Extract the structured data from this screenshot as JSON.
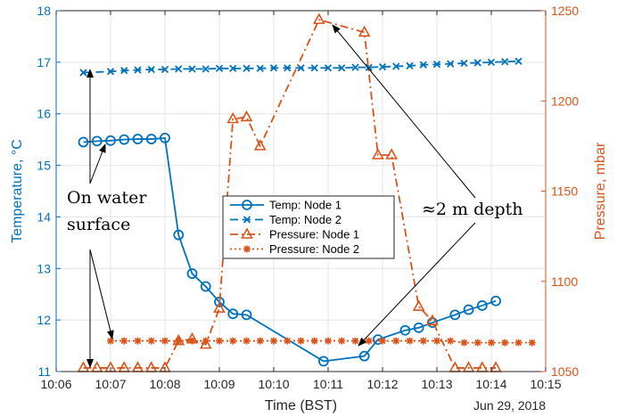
{
  "chart_data": {
    "type": "line",
    "title": "",
    "xlabel": "Time (BST)",
    "x_date_label": "Jun 29, 2018",
    "xlim": [
      "10:06",
      "10:15"
    ],
    "x_ticks": [
      "10:06",
      "10:07",
      "10:08",
      "10:09",
      "10:10",
      "10:11",
      "10:12",
      "10:13",
      "10:14",
      "10:15"
    ],
    "grid": true,
    "y_left": {
      "label": "Temperature, °C",
      "lim": [
        11,
        18
      ],
      "ticks": [
        "11",
        "12",
        "13",
        "14",
        "15",
        "16",
        "17",
        "18"
      ],
      "color": "#0072BD"
    },
    "y_right": {
      "label": "Pressure, mbar",
      "lim": [
        1050,
        1250
      ],
      "ticks": [
        "1050",
        "1100",
        "1150",
        "1200",
        "1250"
      ],
      "color": "#D95319"
    },
    "legend_position": "center",
    "series": [
      {
        "name": "Temp: Node 1",
        "axis": "left",
        "color": "#0072BD",
        "line": "solid",
        "marker": "circle",
        "x": [
          "10:06:30",
          "10:06:45",
          "10:07:00",
          "10:07:15",
          "10:07:30",
          "10:07:45",
          "10:08:00",
          "10:08:15",
          "10:08:30",
          "10:08:45",
          "10:09:00",
          "10:09:15",
          "10:09:30",
          "10:10:55",
          "10:11:40",
          "10:11:55",
          "10:12:25",
          "10:12:40",
          "10:12:55",
          "10:13:20",
          "10:13:35",
          "10:13:50",
          "10:14:05"
        ],
        "values": [
          15.45,
          15.47,
          15.48,
          15.5,
          15.51,
          15.51,
          15.53,
          13.65,
          12.9,
          12.65,
          12.35,
          12.12,
          12.1,
          11.2,
          11.3,
          11.62,
          11.8,
          11.85,
          11.95,
          12.1,
          12.2,
          12.28,
          12.37
        ]
      },
      {
        "name": "Temp: Node 2",
        "axis": "left",
        "color": "#0072BD",
        "line": "dashed",
        "marker": "x",
        "x": [
          "10:06:30",
          "10:07:00",
          "10:07:15",
          "10:07:30",
          "10:07:45",
          "10:08:00",
          "10:08:15",
          "10:08:30",
          "10:08:45",
          "10:09:00",
          "10:09:15",
          "10:09:30",
          "10:09:45",
          "10:10:00",
          "10:10:15",
          "10:10:30",
          "10:10:45",
          "10:11:00",
          "10:11:15",
          "10:11:30",
          "10:11:45",
          "10:12:00",
          "10:12:15",
          "10:12:30",
          "10:12:45",
          "10:13:00",
          "10:13:15",
          "10:13:30",
          "10:13:45",
          "10:14:00",
          "10:14:15",
          "10:14:30"
        ],
        "values": [
          16.8,
          16.82,
          16.84,
          16.85,
          16.86,
          16.86,
          16.87,
          16.87,
          16.87,
          16.88,
          16.88,
          16.88,
          16.88,
          16.89,
          16.89,
          16.89,
          16.89,
          16.89,
          16.89,
          16.9,
          16.9,
          16.91,
          16.92,
          16.93,
          16.95,
          16.96,
          16.97,
          16.98,
          16.99,
          17.0,
          17.01,
          17.02
        ]
      },
      {
        "name": "Pressure: Node 1",
        "axis": "right",
        "color": "#D95319",
        "line": "dashdot",
        "marker": "triangle",
        "x": [
          "10:06:30",
          "10:06:45",
          "10:07:00",
          "10:07:15",
          "10:07:30",
          "10:07:45",
          "10:08:00",
          "10:08:15",
          "10:08:30",
          "10:08:45",
          "10:09:00",
          "10:09:15",
          "10:09:30",
          "10:09:45",
          "10:10:50",
          "10:11:40",
          "10:11:55",
          "10:12:10",
          "10:12:40",
          "10:12:55",
          "10:13:20",
          "10:13:35",
          "10:13:50",
          "10:14:05"
        ],
        "values": [
          1052,
          1052,
          1052,
          1052,
          1052,
          1052,
          1052,
          1067,
          1068,
          1065,
          1085,
          1190,
          1191,
          1175,
          1245,
          1238,
          1170,
          1170,
          1086,
          1078,
          1052,
          1052,
          1052,
          1052
        ]
      },
      {
        "name": "Pressure: Node 2",
        "axis": "right",
        "color": "#D95319",
        "line": "dotted",
        "marker": "star",
        "x": [
          "10:07:00",
          "10:07:15",
          "10:07:30",
          "10:07:45",
          "10:08:00",
          "10:08:15",
          "10:08:30",
          "10:08:45",
          "10:09:00",
          "10:09:15",
          "10:09:30",
          "10:09:45",
          "10:10:00",
          "10:10:15",
          "10:10:30",
          "10:10:45",
          "10:11:00",
          "10:11:15",
          "10:11:30",
          "10:11:45",
          "10:12:00",
          "10:12:15",
          "10:12:30",
          "10:12:45",
          "10:13:00",
          "10:13:15",
          "10:13:30",
          "10:13:45",
          "10:14:00",
          "10:14:15",
          "10:14:30",
          "10:14:45"
        ],
        "values": [
          1067,
          1067,
          1067,
          1067,
          1067,
          1067,
          1067,
          1067,
          1067,
          1067,
          1067,
          1067,
          1067,
          1067,
          1067,
          1067,
          1067,
          1067,
          1067,
          1067,
          1067,
          1067,
          1067,
          1067,
          1067,
          1067,
          1066,
          1066,
          1066,
          1066,
          1066,
          1066
        ]
      }
    ],
    "annotations": [
      {
        "lines": [
          "On water",
          "surface"
        ]
      },
      {
        "lines": [
          "≈2 m depth"
        ]
      }
    ]
  }
}
